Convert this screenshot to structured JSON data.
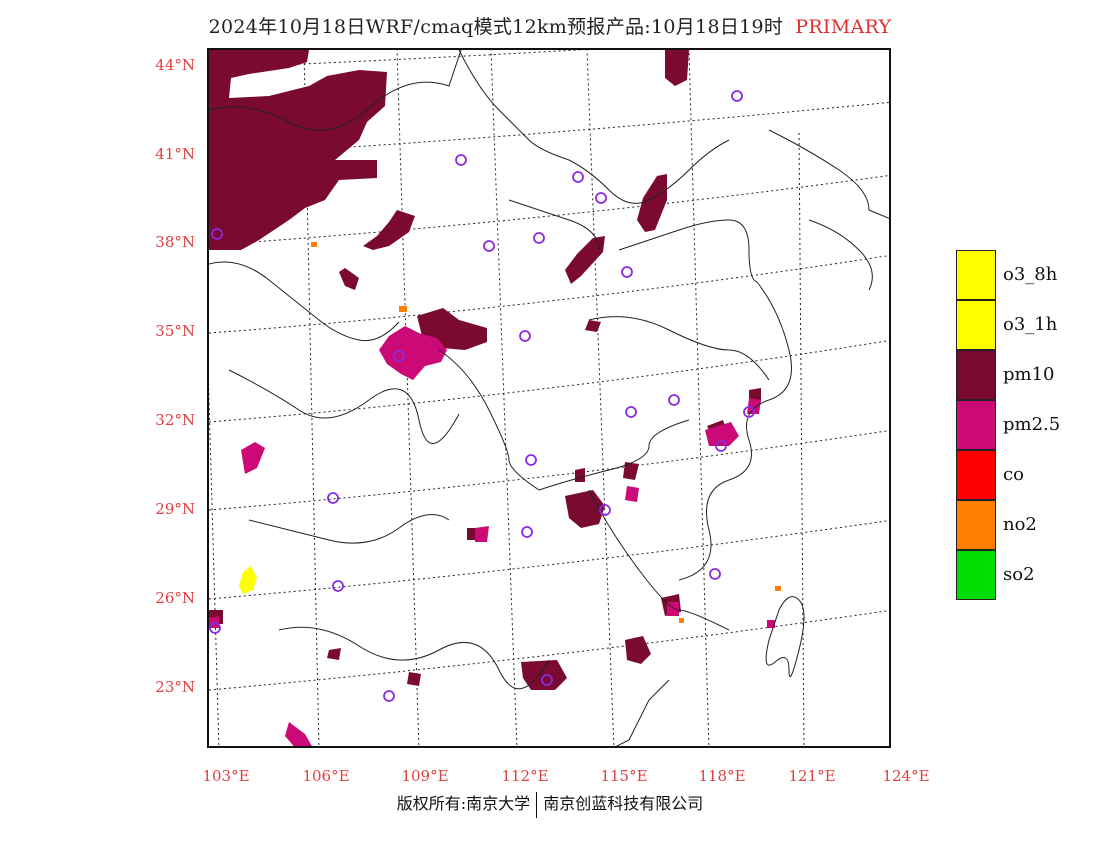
{
  "title": {
    "text": "2024年10月18日WRF/cmaq模式12km预报产品:10月18日19时",
    "tag": "PRIMARY",
    "tag_color": "#e03030"
  },
  "map": {
    "lat_labels": [
      "44°N",
      "41°N",
      "38°N",
      "35°N",
      "32°N",
      "29°N",
      "26°N",
      "23°N"
    ],
    "lon_labels": [
      "103°E",
      "106°E",
      "109°E",
      "112°E",
      "115°E",
      "118°E",
      "121°E",
      "124°E"
    ],
    "label_color": "#e04040",
    "city_marker_color": "#8a2be2"
  },
  "legend": [
    {
      "label": "o3_8h",
      "color": "#ffff00"
    },
    {
      "label": "o3_1h",
      "color": "#ffff00"
    },
    {
      "label": "pm10",
      "color": "#7a0a30"
    },
    {
      "label": "pm2.5",
      "color": "#cc0a77"
    },
    {
      "label": "co",
      "color": "#ff0000"
    },
    {
      "label": "no2",
      "color": "#ff7f00"
    },
    {
      "label": "so2",
      "color": "#00dd00"
    }
  ],
  "credit": {
    "left": "版权所有:南京大学",
    "right": "南京创蓝科技有限公司"
  }
}
